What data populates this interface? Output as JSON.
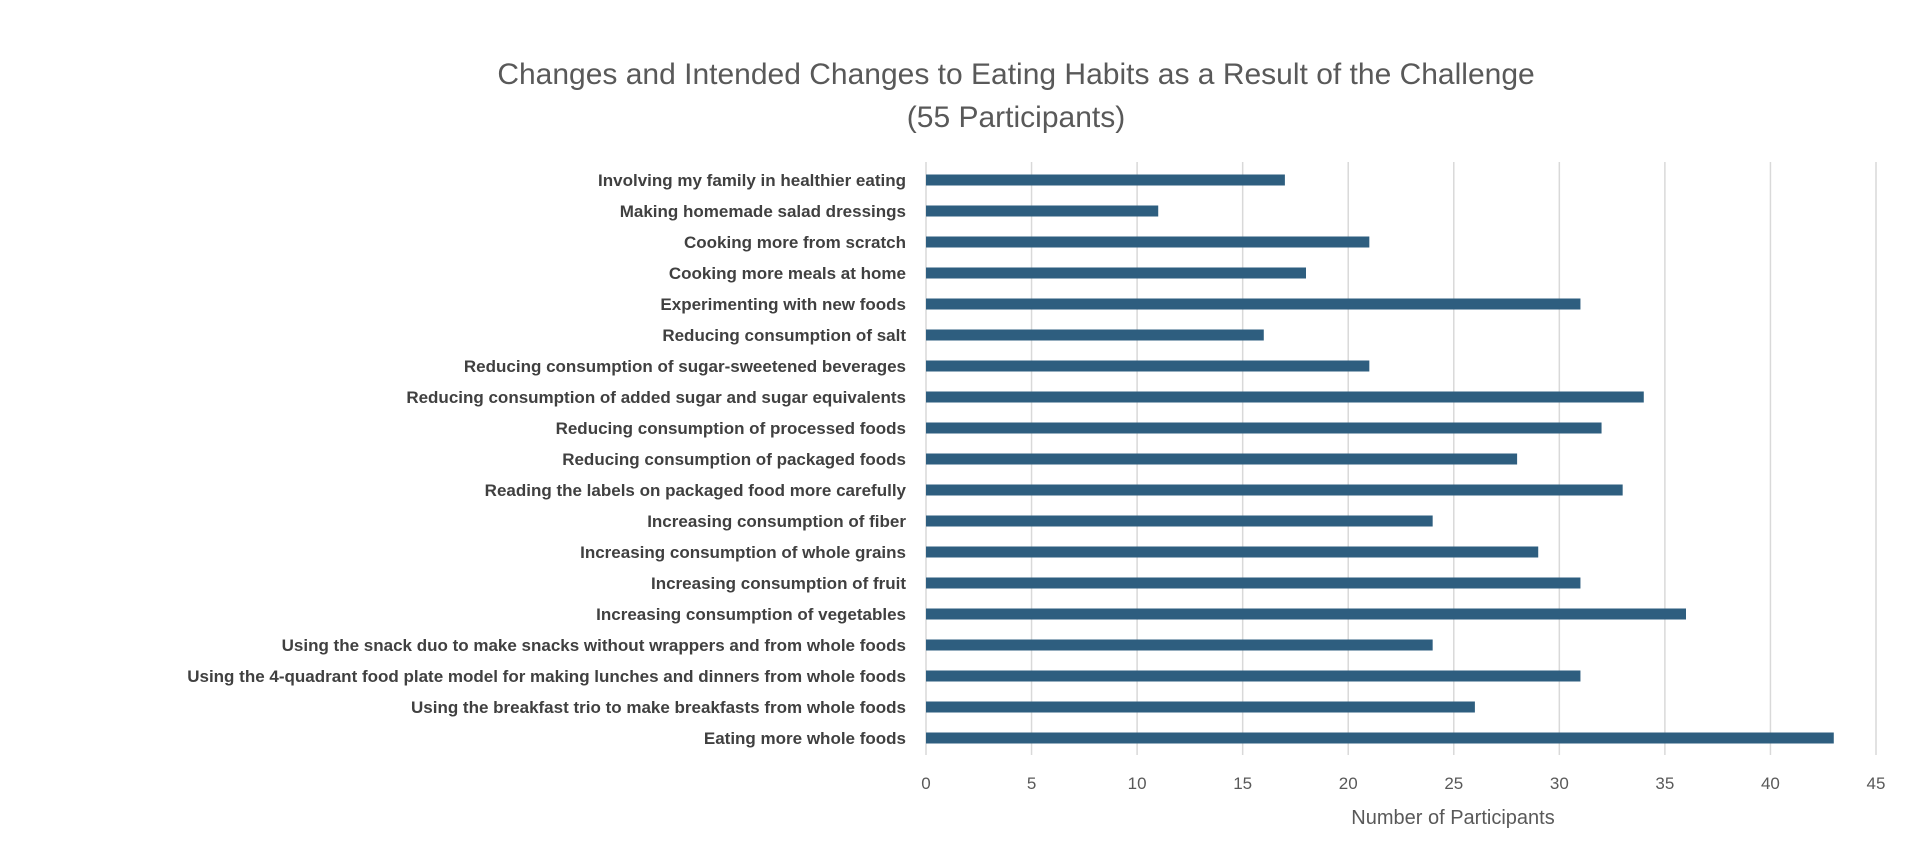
{
  "chart_data": {
    "type": "bar",
    "orientation": "horizontal",
    "title": "Changes and Intended Changes to Eating Habits as a Result of the Challenge",
    "subtitle": "(55 Participants)",
    "xlabel": "Number of Participants",
    "ylabel": "",
    "xlim": [
      0,
      45
    ],
    "xticks": [
      0,
      5,
      10,
      15,
      20,
      25,
      30,
      35,
      40,
      45
    ],
    "grid": true,
    "bar_color": "#2e5e7f",
    "categories": [
      "Involving my family in healthier eating",
      "Making homemade salad dressings",
      "Cooking more from scratch",
      "Cooking more meals at home",
      "Experimenting with new foods",
      "Reducing consumption of salt",
      "Reducing consumption of sugar-sweetened beverages",
      "Reducing consumption of added sugar and sugar equivalents",
      "Reducing consumption of processed foods",
      "Reducing consumption of packaged foods",
      "Reading the labels on packaged food more carefully",
      "Increasing consumption of fiber",
      "Increasing consumption of whole grains",
      "Increasing consumption of fruit",
      "Increasing consumption of vegetables",
      "Using the snack duo to make snacks without wrappers and from whole foods",
      "Using the 4-quadrant food plate model for making lunches and dinners from whole foods",
      "Using the breakfast trio to make breakfasts from whole foods",
      "Eating more whole foods"
    ],
    "values": [
      17,
      11,
      21,
      18,
      31,
      16,
      21,
      34,
      32,
      28,
      33,
      24,
      29,
      31,
      36,
      24,
      31,
      26,
      43
    ]
  }
}
